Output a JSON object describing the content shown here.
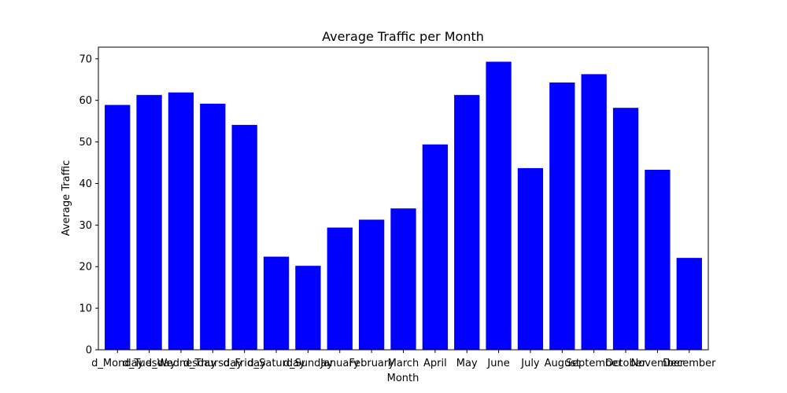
{
  "chart_data": {
    "type": "bar",
    "title": "Average Traffic per Month",
    "xlabel": "Month",
    "ylabel": "Average Traffic",
    "ylim": [
      0,
      72.8
    ],
    "yticks": [
      0,
      10,
      20,
      30,
      40,
      50,
      60,
      70
    ],
    "grid": false,
    "bar_color": "#0000ff",
    "categories": [
      "d_Monday",
      "d_Tuesday",
      "d_Wednesday",
      "d_Thursday",
      "d_Friday",
      "d_Saturday",
      "d_Sunday",
      "January",
      "February",
      "March",
      "April",
      "May",
      "June",
      "July",
      "August",
      "September",
      "October",
      "November",
      "December"
    ],
    "values": [
      58.9,
      61.3,
      61.9,
      59.2,
      54.1,
      22.4,
      20.2,
      29.4,
      31.3,
      34.0,
      49.4,
      61.3,
      69.3,
      43.7,
      64.3,
      66.3,
      58.2,
      43.3,
      22.1
    ]
  }
}
